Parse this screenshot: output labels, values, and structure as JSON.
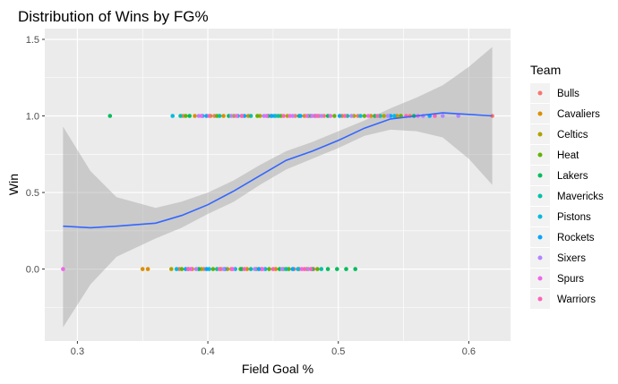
{
  "chart_data": {
    "type": "scatter",
    "title": "Distribution of Wins by FG%",
    "xlabel": "Field Goal %",
    "ylabel": "Win",
    "xlim": [
      0.275,
      0.632
    ],
    "ylim": [
      -0.47,
      1.57
    ],
    "x_ticks": [
      0.3,
      0.4,
      0.5,
      0.6
    ],
    "x_tick_labels": [
      "0.3",
      "0.4",
      "0.5",
      "0.6"
    ],
    "y_ticks": [
      0.0,
      0.5,
      1.0,
      1.5
    ],
    "y_tick_labels": [
      "0.0",
      "0.5",
      "1.0",
      "1.5"
    ],
    "grid": true,
    "background": "#ebebeb",
    "legend": {
      "title": "Team",
      "placement": "right",
      "entries": [
        {
          "name": "Bulls",
          "color": "#F8766D"
        },
        {
          "name": "Cavaliers",
          "color": "#DB8E00"
        },
        {
          "name": "Celtics",
          "color": "#AEA200"
        },
        {
          "name": "Heat",
          "color": "#64B200"
        },
        {
          "name": "Lakers",
          "color": "#00BD5C"
        },
        {
          "name": "Mavericks",
          "color": "#00C1A7"
        },
        {
          "name": "Pistons",
          "color": "#00BADE"
        },
        {
          "name": "Rockets",
          "color": "#00A6FF"
        },
        {
          "name": "Sixers",
          "color": "#B385FF"
        },
        {
          "name": "Spurs",
          "color": "#EF67EB"
        },
        {
          "name": "Warriors",
          "color": "#FF63B6"
        }
      ]
    },
    "series": [
      {
        "name": "Bulls",
        "points": [
          [
            0.381,
            1
          ],
          [
            0.405,
            1
          ],
          [
            0.426,
            1
          ],
          [
            0.448,
            1
          ],
          [
            0.467,
            1
          ],
          [
            0.489,
            1
          ],
          [
            0.515,
            1
          ],
          [
            0.555,
            1
          ],
          [
            0.618,
            1
          ],
          [
            0.378,
            0
          ],
          [
            0.397,
            0
          ],
          [
            0.418,
            0
          ],
          [
            0.441,
            0
          ],
          [
            0.466,
            0
          ],
          [
            0.481,
            0
          ]
        ]
      },
      {
        "name": "Cavaliers",
        "points": [
          [
            0.39,
            1
          ],
          [
            0.412,
            1
          ],
          [
            0.431,
            1
          ],
          [
            0.452,
            1
          ],
          [
            0.474,
            1
          ],
          [
            0.503,
            1
          ],
          [
            0.525,
            1
          ],
          [
            0.545,
            1
          ],
          [
            0.35,
            0
          ],
          [
            0.354,
            0
          ],
          [
            0.388,
            0
          ],
          [
            0.41,
            0
          ],
          [
            0.43,
            0
          ],
          [
            0.452,
            0
          ],
          [
            0.47,
            0
          ]
        ]
      },
      {
        "name": "Celtics",
        "points": [
          [
            0.402,
            1
          ],
          [
            0.42,
            1
          ],
          [
            0.44,
            1
          ],
          [
            0.461,
            1
          ],
          [
            0.485,
            1
          ],
          [
            0.512,
            1
          ],
          [
            0.535,
            1
          ],
          [
            0.372,
            0
          ],
          [
            0.395,
            0
          ],
          [
            0.415,
            0
          ],
          [
            0.437,
            0
          ],
          [
            0.458,
            0
          ],
          [
            0.476,
            0
          ]
        ]
      },
      {
        "name": "Heat",
        "points": [
          [
            0.383,
            1
          ],
          [
            0.407,
            1
          ],
          [
            0.438,
            1
          ],
          [
            0.456,
            1
          ],
          [
            0.477,
            1
          ],
          [
            0.497,
            1
          ],
          [
            0.52,
            1
          ],
          [
            0.548,
            1
          ],
          [
            0.38,
            0
          ],
          [
            0.404,
            0
          ],
          [
            0.425,
            0
          ],
          [
            0.447,
            0
          ],
          [
            0.462,
            0
          ],
          [
            0.484,
            0
          ]
        ]
      },
      {
        "name": "Lakers",
        "points": [
          [
            0.325,
            1
          ],
          [
            0.386,
            1
          ],
          [
            0.416,
            1
          ],
          [
            0.446,
            1
          ],
          [
            0.47,
            1
          ],
          [
            0.492,
            1
          ],
          [
            0.528,
            1
          ],
          [
            0.558,
            1
          ],
          [
            0.393,
            0
          ],
          [
            0.426,
            0
          ],
          [
            0.455,
            0
          ],
          [
            0.48,
            0
          ],
          [
            0.492,
            0
          ],
          [
            0.499,
            0
          ],
          [
            0.506,
            0
          ],
          [
            0.513,
            0
          ]
        ]
      },
      {
        "name": "Mavericks",
        "points": [
          [
            0.379,
            1
          ],
          [
            0.409,
            1
          ],
          [
            0.433,
            1
          ],
          [
            0.454,
            1
          ],
          [
            0.479,
            1
          ],
          [
            0.507,
            1
          ],
          [
            0.532,
            1
          ],
          [
            0.385,
            0
          ],
          [
            0.407,
            0
          ],
          [
            0.433,
            0
          ],
          [
            0.46,
            0
          ],
          [
            0.487,
            0
          ]
        ]
      },
      {
        "name": "Pistons",
        "points": [
          [
            0.373,
            1
          ],
          [
            0.396,
            1
          ],
          [
            0.423,
            1
          ],
          [
            0.451,
            1
          ],
          [
            0.482,
            1
          ],
          [
            0.517,
            1
          ],
          [
            0.543,
            1
          ],
          [
            0.376,
            0
          ],
          [
            0.401,
            0
          ],
          [
            0.421,
            0
          ],
          [
            0.444,
            0
          ],
          [
            0.469,
            0
          ]
        ]
      },
      {
        "name": "Rockets",
        "points": [
          [
            0.399,
            1
          ],
          [
            0.428,
            1
          ],
          [
            0.449,
            1
          ],
          [
            0.471,
            1
          ],
          [
            0.501,
            1
          ],
          [
            0.54,
            1
          ],
          [
            0.57,
            1
          ],
          [
            0.383,
            0
          ],
          [
            0.399,
            0
          ],
          [
            0.413,
            0
          ],
          [
            0.439,
            0
          ],
          [
            0.465,
            0
          ]
        ]
      },
      {
        "name": "Sixers",
        "points": [
          [
            0.393,
            1
          ],
          [
            0.418,
            1
          ],
          [
            0.443,
            1
          ],
          [
            0.465,
            1
          ],
          [
            0.487,
            1
          ],
          [
            0.51,
            1
          ],
          [
            0.538,
            1
          ],
          [
            0.565,
            1
          ],
          [
            0.58,
            1
          ],
          [
            0.592,
            1
          ],
          [
            0.391,
            0
          ],
          [
            0.412,
            0
          ],
          [
            0.436,
            0
          ],
          [
            0.457,
            0
          ],
          [
            0.477,
            0
          ]
        ]
      },
      {
        "name": "Spurs",
        "points": [
          [
            0.395,
            1
          ],
          [
            0.422,
            1
          ],
          [
            0.445,
            1
          ],
          [
            0.463,
            1
          ],
          [
            0.476,
            1
          ],
          [
            0.48,
            1
          ],
          [
            0.484,
            1
          ],
          [
            0.494,
            1
          ],
          [
            0.523,
            1
          ],
          [
            0.561,
            1
          ],
          [
            0.289,
            0
          ],
          [
            0.387,
            0
          ],
          [
            0.419,
            0
          ],
          [
            0.442,
            0
          ],
          [
            0.472,
            0
          ]
        ]
      },
      {
        "name": "Warriors",
        "points": [
          [
            0.401,
            1
          ],
          [
            0.426,
            1
          ],
          [
            0.458,
            1
          ],
          [
            0.483,
            1
          ],
          [
            0.505,
            1
          ],
          [
            0.53,
            1
          ],
          [
            0.552,
            1
          ],
          [
            0.574,
            1
          ],
          [
            0.385,
            0
          ],
          [
            0.409,
            0
          ],
          [
            0.428,
            0
          ],
          [
            0.45,
            0
          ],
          [
            0.474,
            0
          ],
          [
            0.479,
            0
          ]
        ]
      }
    ],
    "smooth": {
      "color": "#3366FF",
      "band_color": "#999999",
      "x": [
        0.289,
        0.31,
        0.33,
        0.36,
        0.38,
        0.4,
        0.42,
        0.44,
        0.46,
        0.48,
        0.5,
        0.52,
        0.54,
        0.56,
        0.58,
        0.6,
        0.618
      ],
      "y": [
        0.28,
        0.27,
        0.28,
        0.3,
        0.35,
        0.42,
        0.51,
        0.61,
        0.71,
        0.77,
        0.84,
        0.92,
        0.98,
        1.0,
        1.02,
        1.01,
        1.0
      ],
      "lower": [
        -0.38,
        -0.1,
        0.08,
        0.2,
        0.27,
        0.36,
        0.44,
        0.55,
        0.65,
        0.72,
        0.79,
        0.87,
        0.91,
        0.9,
        0.86,
        0.72,
        0.55
      ],
      "upper": [
        0.93,
        0.64,
        0.47,
        0.4,
        0.44,
        0.5,
        0.58,
        0.68,
        0.77,
        0.83,
        0.9,
        0.97,
        1.05,
        1.12,
        1.2,
        1.32,
        1.45
      ]
    }
  }
}
